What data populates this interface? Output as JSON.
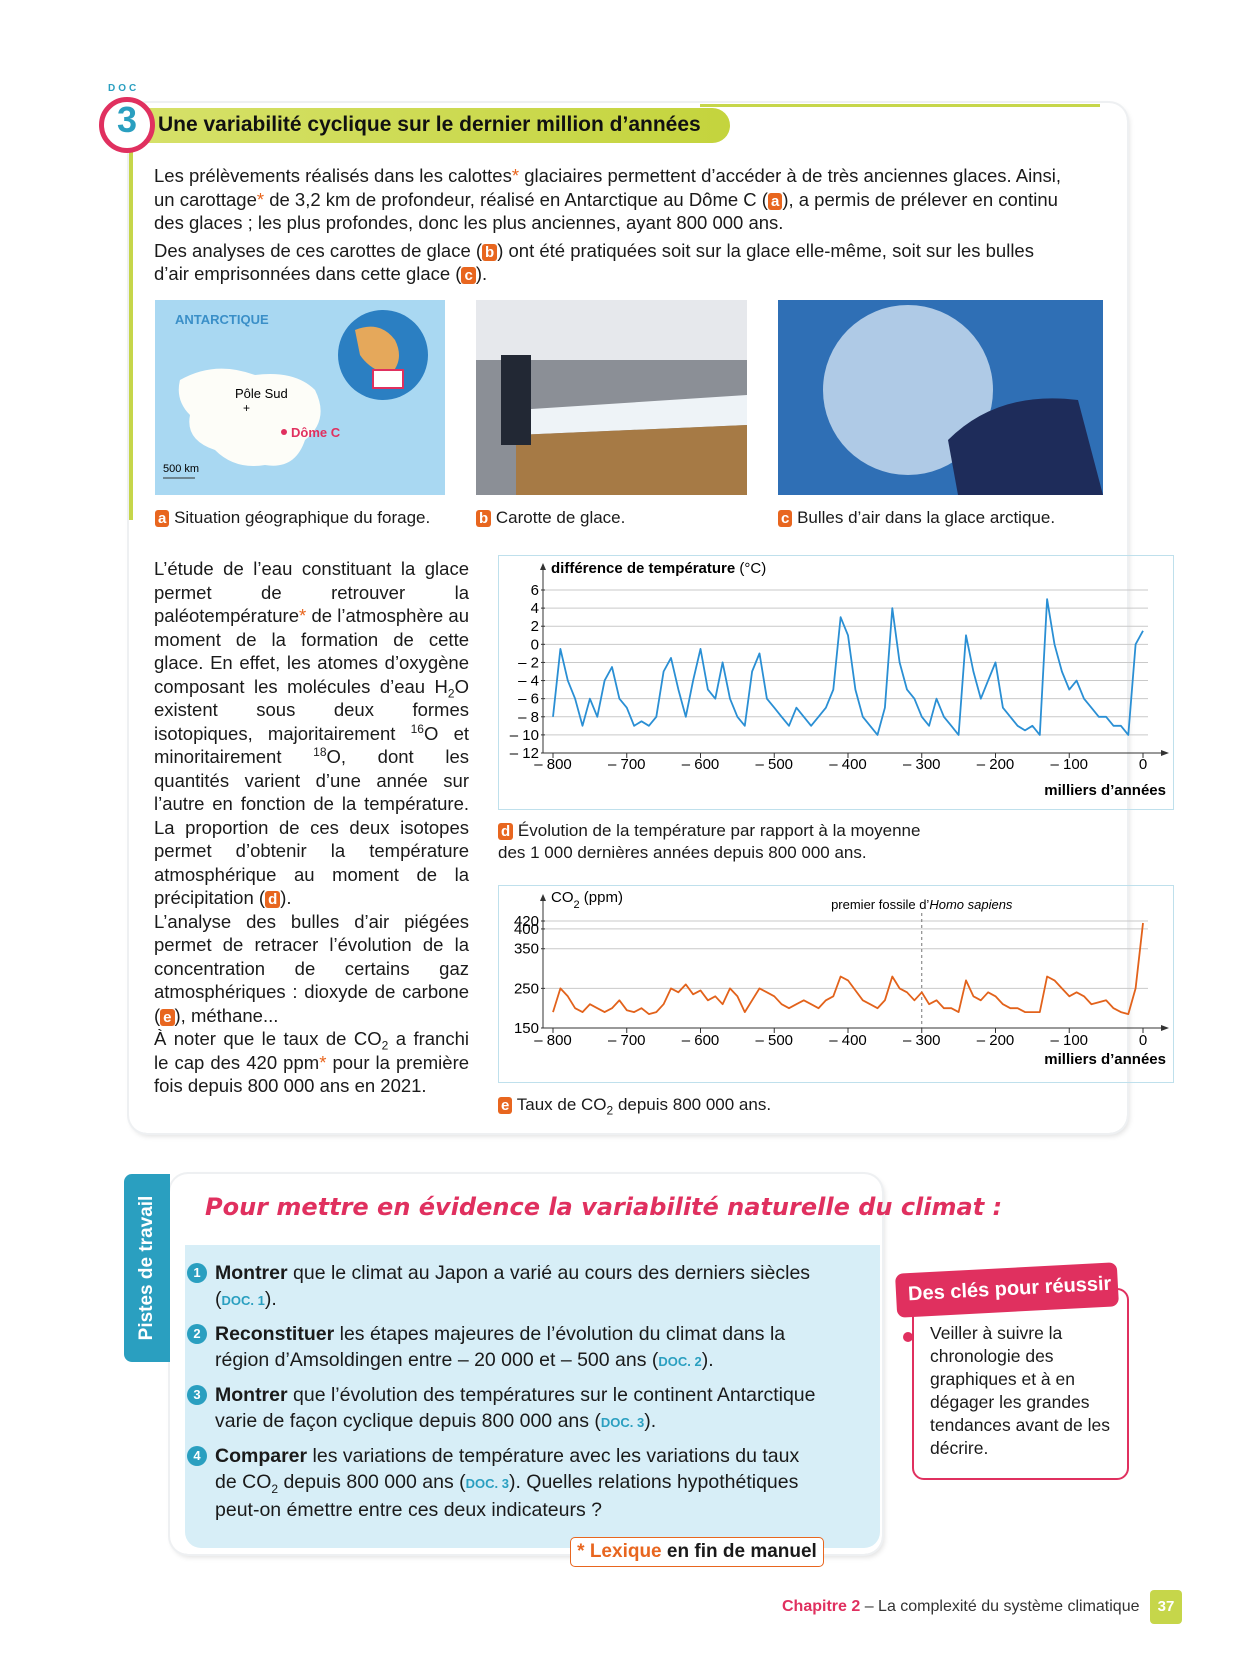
{
  "doc": {
    "badge_top": "DOC",
    "badge_number": "3",
    "title": "Une variabilité cyclique sur le dernier million d’années"
  },
  "intro": [
    [
      "Les prélèvements réalisés dans les calottes",
      {
        "t": "*",
        "k": "star"
      },
      " glaciaires permettent d’accéder à de très anciennes glaces. Ainsi, un carottage",
      {
        "t": "*",
        "k": "star"
      },
      " de 3,2 km de profondeur, réalisé en Antarctique au Dôme C (",
      {
        "t": "a",
        "k": "tag"
      },
      "), a permis de prélever en continu des glaces ; les plus profondes, donc les plus anciennes, ayant 800 000 ans."
    ],
    [
      "Des analyses de ces carottes de glace (",
      {
        "t": "b",
        "k": "tag"
      },
      ") ont été pratiquées soit sur la glace elle-même, soit sur les bulles d’air emprisonnées dans cette glace (",
      {
        "t": "c",
        "k": "tag"
      },
      ")."
    ]
  ],
  "map": {
    "region": "ANTARCTIQUE",
    "pole": "Pôle Sud",
    "site": "Dôme C",
    "scale": "500 km"
  },
  "figures": [
    [
      {
        "t": "a",
        "k": "tag"
      },
      " Situation géographique du forage."
    ],
    [
      {
        "t": "b",
        "k": "tag"
      },
      " Carotte de glace."
    ],
    [
      {
        "t": "c",
        "k": "tag"
      },
      " Bulles d’air dans la glace arctique."
    ]
  ],
  "body": [
    [
      "L’étude de l’eau constituant la glace permet de retrouver la paléotempérature",
      {
        "t": "*",
        "k": "star"
      },
      " de l’atmosphère au moment de la formation de cette glace. En effet, les atomes d’oxygène composant les molécules d’eau H",
      {
        "t": "2",
        "k": "sub"
      },
      "O existent sous deux formes isotopiques, majoritairement ",
      {
        "t": "16",
        "k": "sup"
      },
      "O et minoritairement ",
      {
        "t": "18",
        "k": "sup"
      },
      "O, dont les quantités varient d’une année sur l’autre en fonction de la température. La proportion de ces deux isotopes permet d’obtenir la température atmosphérique au moment de la précipitation (",
      {
        "t": "d",
        "k": "tag"
      },
      ")."
    ],
    [
      "L’analyse des bulles d’air piégées permet de retracer l’évolution de la concentration de certains gaz atmosphériques : dioxyde de carbone (",
      {
        "t": "e",
        "k": "tag"
      },
      "), méthane..."
    ],
    [
      "À noter que le taux de CO",
      {
        "t": "2",
        "k": "sub"
      },
      " a franchi le cap des 420 ppm",
      {
        "t": "*",
        "k": "star"
      },
      " pour la première fois depuis 800 000 ans en 2021."
    ]
  ],
  "chart_data": [
    {
      "type": "line",
      "color": "#2a8fd4",
      "grid": true,
      "y_label": [
        {
          "t": "différence de température",
          "k": "b"
        },
        " (°C)"
      ],
      "x_label": "milliers d’années",
      "caption": [
        {
          "t": "d",
          "k": "tag"
        },
        " Évolution de la température par rapport à la moyenne des 1 000 dernières années depuis 800 000 ans."
      ],
      "xlim": [
        -800,
        0
      ],
      "xticks": [
        {
          "value": -800,
          "label": "– 800"
        },
        {
          "value": -700,
          "label": "– 700"
        },
        {
          "value": -600,
          "label": "– 600"
        },
        {
          "value": -500,
          "label": "– 500"
        },
        {
          "value": -400,
          "label": "– 400"
        },
        {
          "value": -300,
          "label": "– 300"
        },
        {
          "value": -200,
          "label": "– 200"
        },
        {
          "value": -100,
          "label": "– 100"
        },
        0
      ],
      "ylim": [
        -12,
        6
      ],
      "yticks": [
        6,
        4,
        2,
        0,
        {
          "value": -2,
          "label": "– 2"
        },
        {
          "value": -4,
          "label": "– 4"
        },
        {
          "value": -6,
          "label": "– 6"
        },
        {
          "value": -8,
          "label": "– 8"
        },
        {
          "value": -10,
          "label": "– 10"
        },
        {
          "value": -12,
          "label": "– 12"
        }
      ],
      "x": [
        -800,
        -790,
        -780,
        -770,
        -760,
        -750,
        -740,
        -730,
        -720,
        -710,
        -700,
        -690,
        -680,
        -670,
        -660,
        -650,
        -640,
        -630,
        -620,
        -610,
        -600,
        -590,
        -580,
        -570,
        -560,
        -550,
        -540,
        -530,
        -520,
        -510,
        -500,
        -490,
        -480,
        -470,
        -460,
        -450,
        -440,
        -430,
        -420,
        -410,
        -400,
        -390,
        -380,
        -370,
        -360,
        -350,
        -340,
        -330,
        -320,
        -310,
        -300,
        -290,
        -280,
        -270,
        -260,
        -250,
        -240,
        -230,
        -220,
        -210,
        -200,
        -190,
        -180,
        -170,
        -160,
        -150,
        -140,
        -130,
        -120,
        -110,
        -100,
        -90,
        -80,
        -70,
        -60,
        -50,
        -40,
        -30,
        -20,
        -10,
        0
      ],
      "values": [
        -8,
        -0.5,
        -4,
        -6,
        -9,
        -6,
        -8,
        -4,
        -2.5,
        -6,
        -7,
        -9,
        -8.5,
        -9,
        -8,
        -3,
        -1.5,
        -5,
        -8,
        -4,
        -0.5,
        -5,
        -6,
        -2,
        -6,
        -8,
        -9,
        -3,
        -1,
        -6,
        -7,
        -8,
        -9,
        -7,
        -8,
        -9,
        -8,
        -7,
        -5,
        3,
        1,
        -5,
        -8,
        -9,
        -10,
        -7,
        4,
        -2,
        -5,
        -6,
        -8,
        -9,
        -6,
        -8,
        -9,
        -10,
        1,
        -3,
        -6,
        -4,
        -2,
        -7,
        -8,
        -9,
        -9.5,
        -9,
        -10,
        5,
        0,
        -3,
        -5,
        -4,
        -6,
        -7,
        -8,
        -8,
        -9,
        -9,
        -10,
        0,
        1.5
      ]
    },
    {
      "type": "line",
      "color": "#e2621b",
      "grid": true,
      "y_label": [
        "CO",
        {
          "t": "2",
          "k": "sub"
        },
        " (ppm)"
      ],
      "x_label": "milliers d’années",
      "caption": [
        {
          "t": "e",
          "k": "tag"
        },
        " Taux de CO",
        {
          "t": "2",
          "k": "sub"
        },
        " depuis 800 000 ans."
      ],
      "annotation": {
        "x": -300,
        "text": [
          "premier fossile d’",
          {
            "t": "Homo sapiens",
            "k": "i"
          }
        ]
      },
      "xlim": [
        -800,
        0
      ],
      "xticks": [
        {
          "value": -800,
          "label": "– 800"
        },
        {
          "value": -700,
          "label": "– 700"
        },
        {
          "value": -600,
          "label": "– 600"
        },
        {
          "value": -500,
          "label": "– 500"
        },
        {
          "value": -400,
          "label": "– 400"
        },
        {
          "value": -300,
          "label": "– 300"
        },
        {
          "value": -200,
          "label": "– 200"
        },
        {
          "value": -100,
          "label": "– 100"
        },
        0
      ],
      "ylim": [
        150,
        420
      ],
      "yticks": [
        150,
        250,
        350,
        400,
        420
      ],
      "x": [
        -800,
        -790,
        -780,
        -770,
        -760,
        -750,
        -740,
        -730,
        -720,
        -710,
        -700,
        -690,
        -680,
        -670,
        -660,
        -650,
        -640,
        -630,
        -620,
        -610,
        -600,
        -590,
        -580,
        -570,
        -560,
        -550,
        -540,
        -530,
        -520,
        -510,
        -500,
        -490,
        -480,
        -470,
        -460,
        -450,
        -440,
        -430,
        -420,
        -410,
        -400,
        -390,
        -380,
        -370,
        -360,
        -350,
        -340,
        -330,
        -320,
        -310,
        -300,
        -290,
        -280,
        -270,
        -260,
        -250,
        -240,
        -230,
        -220,
        -210,
        -200,
        -190,
        -180,
        -170,
        -160,
        -150,
        -140,
        -130,
        -120,
        -110,
        -100,
        -90,
        -80,
        -70,
        -60,
        -50,
        -40,
        -30,
        -20,
        -10,
        0
      ],
      "values": [
        190,
        250,
        230,
        200,
        190,
        210,
        200,
        190,
        200,
        220,
        195,
        190,
        200,
        185,
        190,
        210,
        250,
        240,
        260,
        235,
        245,
        220,
        230,
        210,
        250,
        230,
        190,
        220,
        250,
        240,
        230,
        210,
        200,
        210,
        220,
        210,
        200,
        220,
        230,
        280,
        270,
        245,
        220,
        210,
        200,
        220,
        280,
        250,
        240,
        220,
        240,
        210,
        220,
        200,
        200,
        190,
        270,
        230,
        220,
        240,
        230,
        210,
        200,
        200,
        190,
        190,
        190,
        280,
        270,
        250,
        230,
        240,
        230,
        210,
        215,
        220,
        200,
        190,
        185,
        250,
        415
      ]
    }
  ],
  "tasks": {
    "tab": "Pistes de travail",
    "heading": "Pour mettre en évidence la variabilité naturelle du climat :",
    "items": [
      {
        "number": "1",
        "text": [
          {
            "t": "Montrer",
            "k": "b"
          },
          " que le climat au Japon a varié au cours des derniers siècles (",
          {
            "t": "DOC. 1",
            "k": "doc"
          },
          ")."
        ]
      },
      {
        "number": "2",
        "text": [
          {
            "t": "Reconstituer",
            "k": "b"
          },
          " les étapes majeures de l’évolution du climat dans la région d’Amsoldingen entre – 20 000 et – 500 ans (",
          {
            "t": "DOC. 2",
            "k": "doc"
          },
          ")."
        ]
      },
      {
        "number": "3",
        "text": [
          {
            "t": "Montrer",
            "k": "b"
          },
          " que l’évolution des températures sur le continent Antarctique varie de façon cyclique depuis 800 000 ans (",
          {
            "t": "DOC. 3",
            "k": "doc"
          },
          ")."
        ]
      },
      {
        "number": "4",
        "text": [
          {
            "t": "Comparer",
            "k": "b"
          },
          " les variations de température avec les variations du taux de CO",
          {
            "t": "2",
            "k": "sub"
          },
          " depuis 800 000 ans (",
          {
            "t": "DOC. 3",
            "k": "doc"
          },
          "). Quelles relations hypothétiques peut-on émettre entre ces deux indicateurs ?"
        ]
      }
    ],
    "lexique": [
      {
        "t": "* Lexique",
        "k": "star"
      },
      " en fin de manuel"
    ]
  },
  "tips": {
    "title": "Des clés pour réussir",
    "text": "Veiller à suivre la chronologie des graphiques et à en dégager les grandes tendances avant de les décrire."
  },
  "footer": {
    "chapter": "Chapitre 2",
    "subject": " – La complexité du système climatique",
    "page": "37"
  }
}
